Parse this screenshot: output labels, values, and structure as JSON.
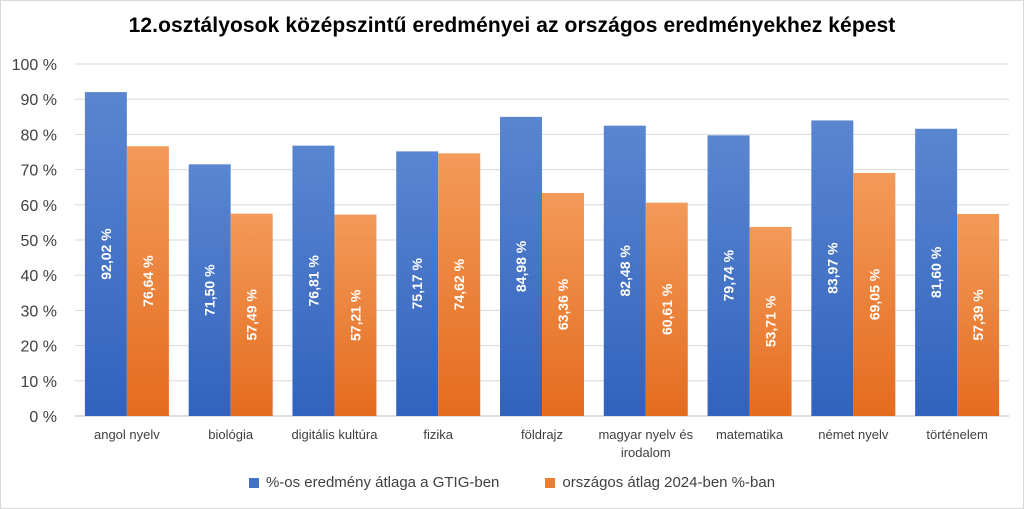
{
  "chart_data": {
    "type": "bar",
    "title": "12.osztályosok középszintű eredményei az országos eredményekhez képest",
    "categories": [
      "angol nyelv",
      "biológia",
      "digitális kultúra",
      "fizika",
      "földrajz",
      "magyar nyelv és irodalom",
      "matematika",
      "német nyelv",
      "történelem"
    ],
    "series": [
      {
        "name": "%-os eredmény átlaga a GTIG-ben",
        "color": "#4472c4",
        "values": [
          92.02,
          71.5,
          76.81,
          75.17,
          84.98,
          82.48,
          79.74,
          83.97,
          81.6
        ],
        "labels": [
          "92,02 %",
          "71,50 %",
          "76,81 %",
          "75,17 %",
          "84,98 %",
          "82,48 %",
          "79,74 %",
          "83,97 %",
          "81,60 %"
        ]
      },
      {
        "name": "országos átlag 2024-ben %-ban",
        "color": "#ed7d31",
        "values": [
          76.64,
          57.49,
          57.21,
          74.62,
          63.36,
          60.61,
          53.71,
          69.05,
          57.39
        ],
        "labels": [
          "76,64 %",
          "57,49 %",
          "57,21 %",
          "74,62 %",
          "63,36 %",
          "60,61 %",
          "53,71 %",
          "69,05 %",
          "57,39 %"
        ]
      }
    ],
    "y_ticks": [
      "0 %",
      "10 %",
      "20 %",
      "30 %",
      "40 %",
      "50 %",
      "60 %",
      "70 %",
      "80 %",
      "90 %",
      "100 %"
    ],
    "ylim": [
      0,
      100
    ],
    "grid": true,
    "legend_position": "bottom"
  }
}
